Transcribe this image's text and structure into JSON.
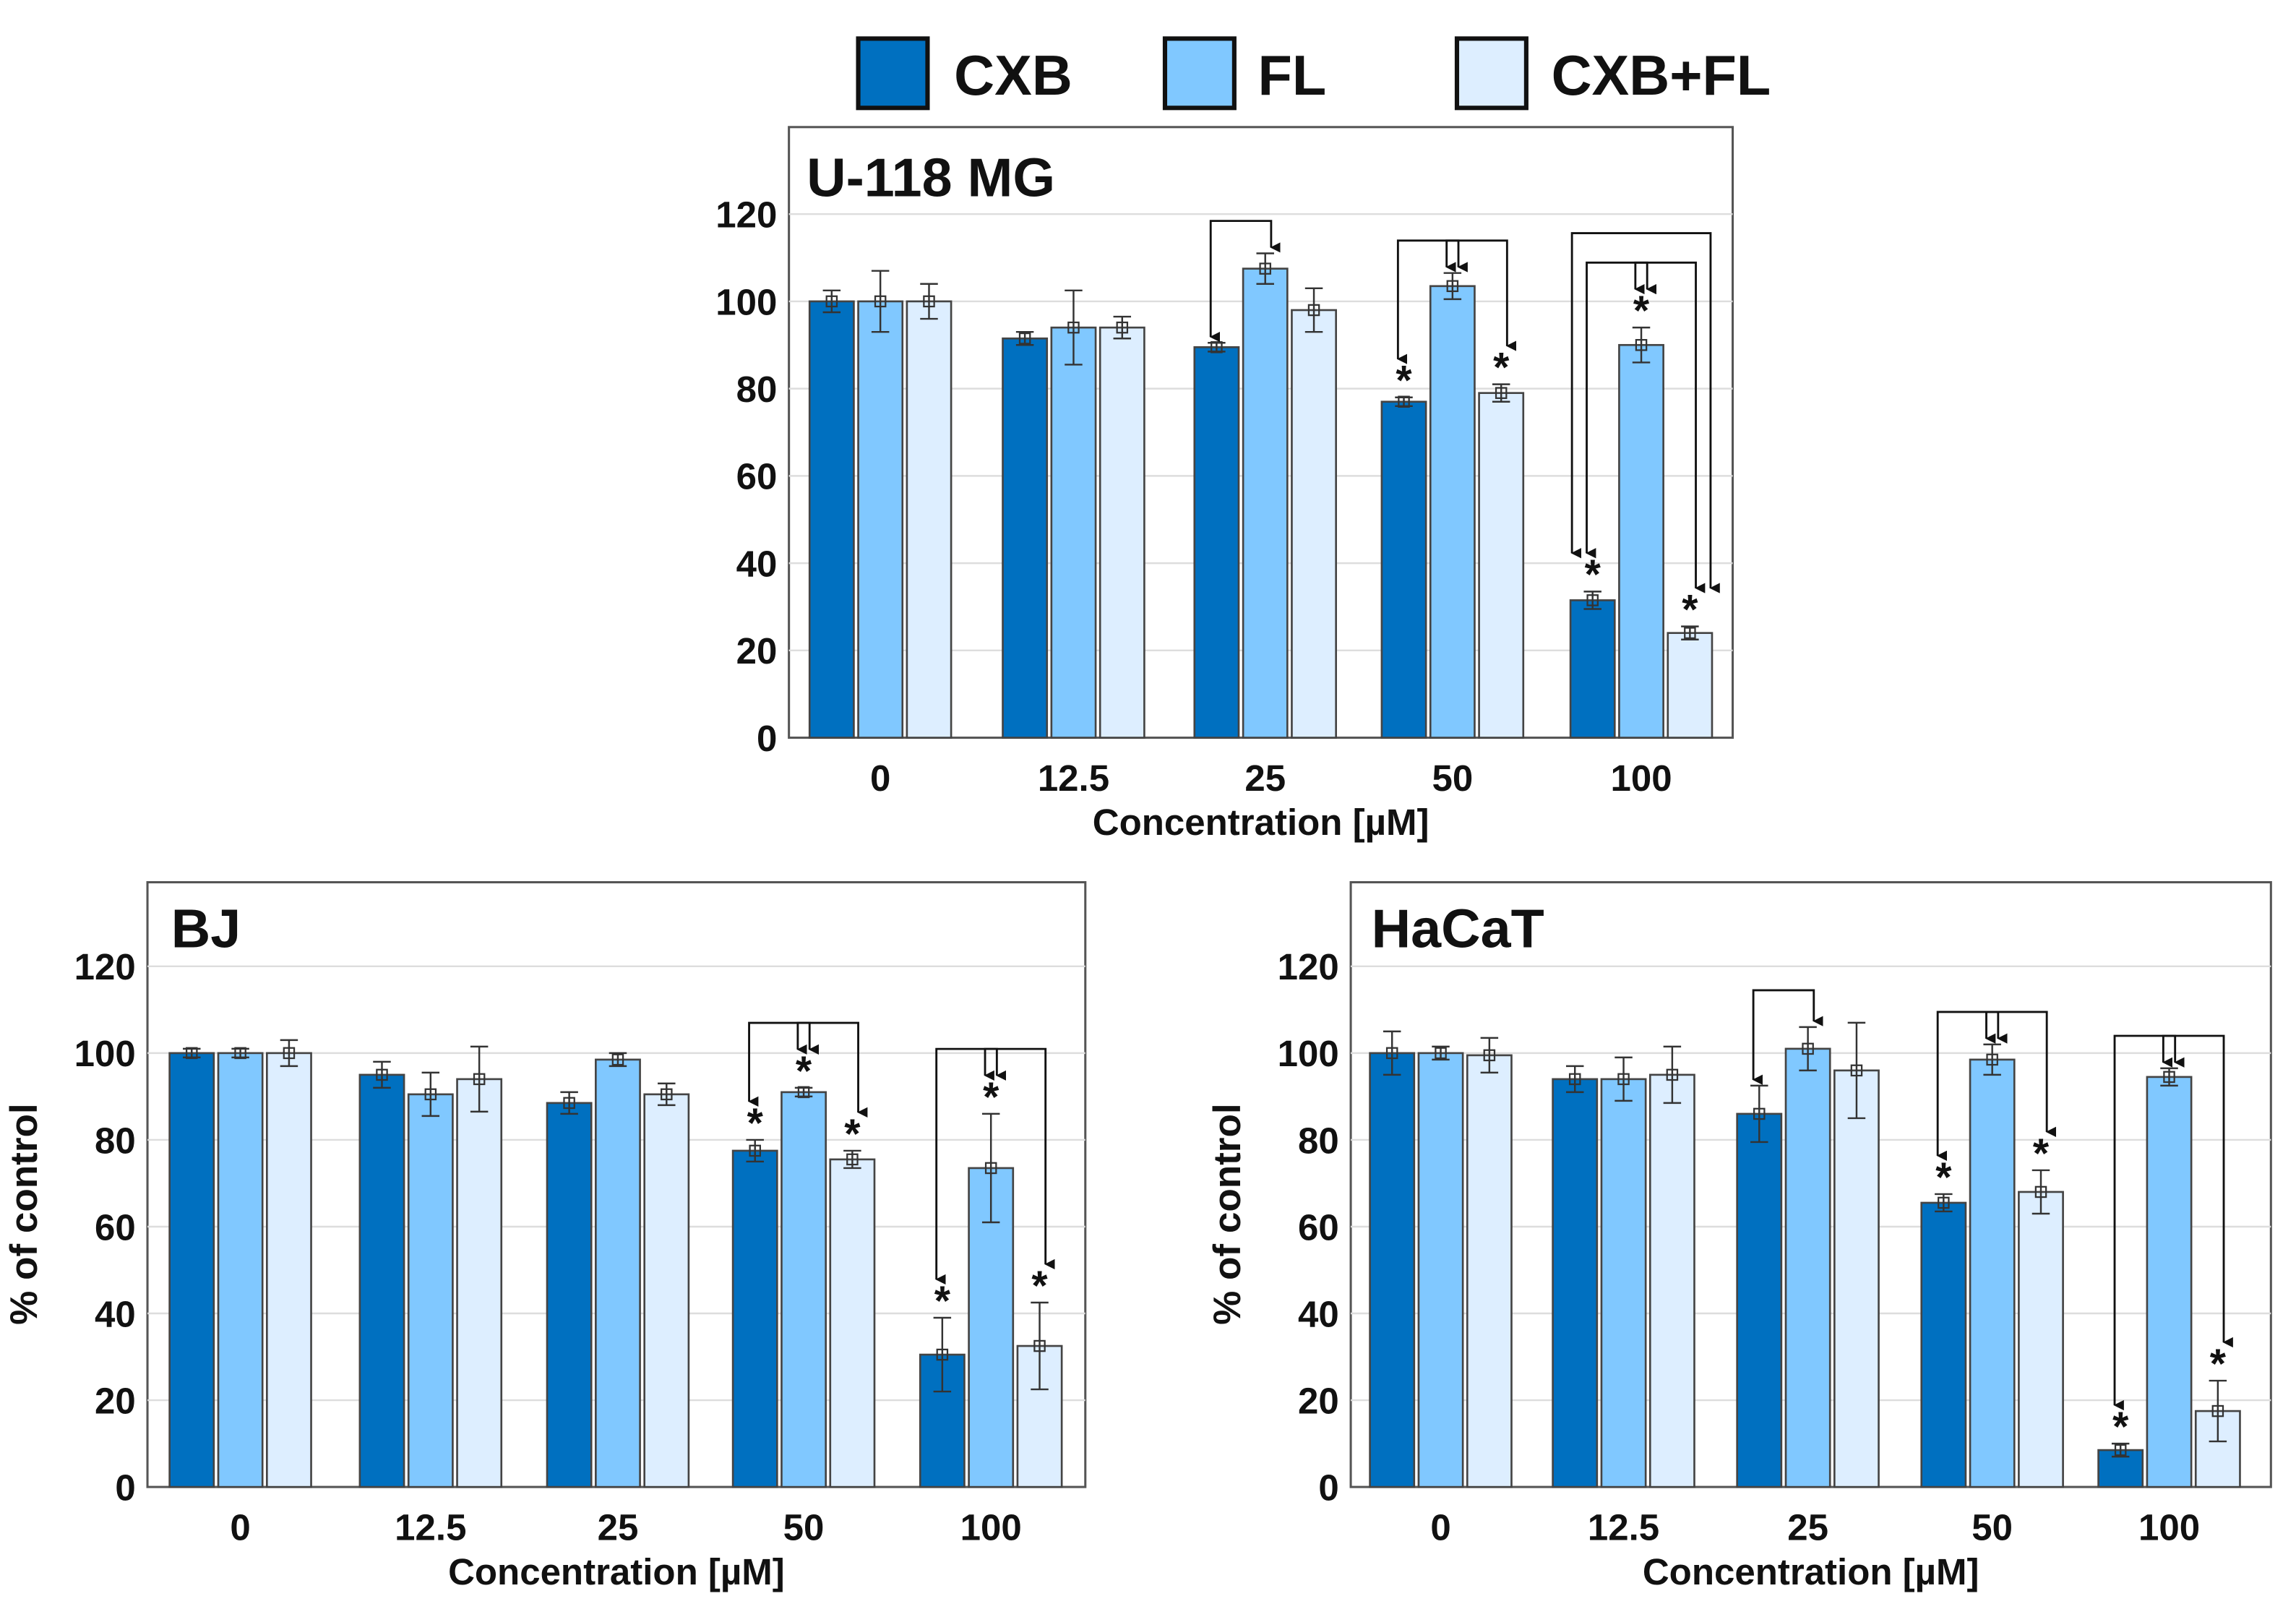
{
  "legend": [
    {
      "name": "CXB",
      "color": "#0070C0"
    },
    {
      "name": "FL",
      "color": "#80C8FF"
    },
    {
      "name": "CXB+FL",
      "color": "#DDEEFF"
    }
  ],
  "chart_data": [
    {
      "type": "bar",
      "title": "U-118 MG",
      "xlabel": "Concentration [µM]",
      "ylabel": "",
      "categories": [
        "0",
        "12.5",
        "25",
        "50",
        "100"
      ],
      "ylim": [
        0,
        140
      ],
      "yticks": [
        0,
        20,
        40,
        60,
        80,
        100,
        120
      ],
      "grid": true,
      "series": [
        {
          "name": "CXB",
          "values": [
            100,
            91.5,
            89.5,
            77,
            31.5
          ],
          "errors": [
            2.5,
            1.5,
            1,
            1,
            2
          ],
          "significant": [
            false,
            false,
            false,
            true,
            true
          ]
        },
        {
          "name": "FL",
          "values": [
            100,
            94,
            107.5,
            103.5,
            90
          ],
          "errors": [
            7,
            8.5,
            3.5,
            3,
            4
          ],
          "significant": [
            false,
            false,
            false,
            false,
            true
          ]
        },
        {
          "name": "CXB+FL",
          "values": [
            100,
            94,
            98,
            79,
            24
          ],
          "errors": [
            4,
            2.5,
            5,
            2,
            1.5
          ],
          "significant": [
            false,
            false,
            false,
            true,
            true
          ]
        }
      ],
      "comparisons": [
        {
          "category": "25",
          "from": "CXB",
          "to": "FL",
          "level": 0
        },
        {
          "category": "50",
          "from": "CXB",
          "to": "FL",
          "level": 0
        },
        {
          "category": "50",
          "from": "FL",
          "to": "CXB+FL",
          "level": 0
        },
        {
          "category": "100",
          "from": "CXB",
          "to": "FL",
          "level": 0
        },
        {
          "category": "100",
          "from": "FL",
          "to": "CXB+FL",
          "level": 0
        },
        {
          "category": "100",
          "from": "CXB",
          "to": "CXB+FL",
          "level": 1
        }
      ],
      "significance_mark": "*"
    },
    {
      "type": "bar",
      "title": "BJ",
      "xlabel": "Concentration [µM]",
      "ylabel": "% of control",
      "categories": [
        "0",
        "12.5",
        "25",
        "50",
        "100"
      ],
      "ylim": [
        0,
        140
      ],
      "yticks": [
        0,
        20,
        40,
        60,
        80,
        100,
        120
      ],
      "grid": true,
      "series": [
        {
          "name": "CXB",
          "values": [
            100,
            95,
            88.5,
            77.5,
            30.5
          ],
          "errors": [
            1,
            3,
            2.5,
            2.5,
            8.5
          ],
          "significant": [
            false,
            false,
            false,
            true,
            true
          ]
        },
        {
          "name": "FL",
          "values": [
            100,
            90.5,
            98.5,
            91,
            73.5
          ],
          "errors": [
            1,
            5,
            1.5,
            1,
            12.5
          ],
          "significant": [
            false,
            false,
            false,
            true,
            true
          ]
        },
        {
          "name": "CXB+FL",
          "values": [
            100,
            94,
            90.5,
            75.5,
            32.5
          ],
          "errors": [
            3,
            7.5,
            2.5,
            2,
            10
          ],
          "significant": [
            false,
            false,
            false,
            true,
            true
          ]
        }
      ],
      "comparisons": [
        {
          "category": "50",
          "from": "CXB",
          "to": "FL",
          "level": 0
        },
        {
          "category": "50",
          "from": "FL",
          "to": "CXB+FL",
          "level": 0
        },
        {
          "category": "100",
          "from": "CXB",
          "to": "FL",
          "level": 0
        },
        {
          "category": "100",
          "from": "FL",
          "to": "CXB+FL",
          "level": 0
        }
      ],
      "significance_mark": "*"
    },
    {
      "type": "bar",
      "title": "HaCaT",
      "xlabel": "Concentration [µM]",
      "ylabel": "% of control",
      "categories": [
        "0",
        "12.5",
        "25",
        "50",
        "100"
      ],
      "ylim": [
        0,
        140
      ],
      "yticks": [
        0,
        20,
        40,
        60,
        80,
        100,
        120
      ],
      "grid": true,
      "series": [
        {
          "name": "CXB",
          "values": [
            100,
            94,
            86,
            65.5,
            8.5
          ],
          "errors": [
            5,
            3,
            6.5,
            2,
            1.5
          ],
          "significant": [
            false,
            false,
            false,
            true,
            true
          ]
        },
        {
          "name": "FL",
          "values": [
            100,
            94,
            101,
            98.5,
            94.5
          ],
          "errors": [
            1.5,
            5,
            5,
            3.5,
            2
          ],
          "significant": [
            false,
            false,
            false,
            false,
            false
          ]
        },
        {
          "name": "CXB+FL",
          "values": [
            99.5,
            95,
            96,
            68,
            17.5
          ],
          "errors": [
            4,
            6.5,
            11,
            5,
            7
          ],
          "significant": [
            false,
            false,
            false,
            true,
            true
          ]
        }
      ],
      "comparisons": [
        {
          "category": "25",
          "from": "CXB",
          "to": "FL",
          "level": 0
        },
        {
          "category": "50",
          "from": "CXB",
          "to": "FL",
          "level": 0
        },
        {
          "category": "50",
          "from": "FL",
          "to": "CXB+FL",
          "level": 0
        },
        {
          "category": "100",
          "from": "CXB",
          "to": "FL",
          "level": 0
        },
        {
          "category": "100",
          "from": "FL",
          "to": "CXB+FL",
          "level": 0
        }
      ],
      "significance_mark": "*"
    }
  ]
}
